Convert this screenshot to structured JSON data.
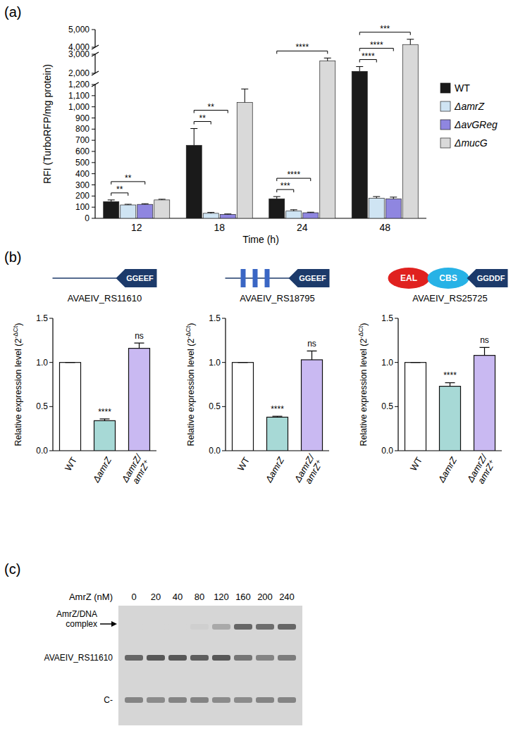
{
  "panel_labels": [
    "(a)",
    "(b)",
    "(c)"
  ],
  "chart_data": [
    {
      "type": "bar",
      "xlabel": "Time (h)",
      "ylabel": "RFI (TurboRFP/mg protein)",
      "categories": [
        "12",
        "18",
        "24",
        "48"
      ],
      "series": [
        {
          "name": "WT",
          "color": "#1a1a1a",
          "values": [
            150,
            655,
            175,
            2100
          ],
          "errors": [
            15,
            150,
            20,
            250
          ]
        },
        {
          "name": "ΔamrZ",
          "color": "#cfe4f3",
          "values": [
            120,
            45,
            65,
            180
          ],
          "errors": [
            6,
            8,
            12,
            15
          ]
        },
        {
          "name": "ΔavGReg",
          "color": "#8f86e0",
          "values": [
            125,
            35,
            50,
            175
          ],
          "errors": [
            6,
            4,
            5,
            15
          ]
        },
        {
          "name": "ΔmucG",
          "color": "#d9d9d9",
          "values": [
            165,
            1040,
            2650,
            4150
          ],
          "errors": [
            6,
            120,
            150,
            300
          ]
        }
      ],
      "ylim": [
        0,
        5000
      ],
      "y_breaks": [
        [
          1200,
          2000
        ],
        [
          3000,
          4000
        ]
      ],
      "yticks": [
        0,
        100,
        200,
        300,
        400,
        500,
        600,
        700,
        800,
        900,
        {
          "value": 1000,
          "label": "1,000"
        },
        {
          "value": 1100,
          "label": "1,100"
        },
        {
          "value": 1200,
          "label": "1,200"
        },
        {
          "value": 2000,
          "label": "2,000"
        },
        {
          "value": 3000,
          "label": "3,000"
        },
        {
          "value": 4000,
          "label": "4,000"
        },
        {
          "value": 5000,
          "label": "5,000"
        }
      ],
      "legend": "right",
      "significance": [
        {
          "category": 0,
          "series": [
            0,
            1
          ],
          "text": "**"
        },
        {
          "category": 0,
          "series": [
            0,
            2
          ],
          "text": "**"
        },
        {
          "category": 1,
          "series": [
            0,
            1
          ],
          "text": "**"
        },
        {
          "category": 1,
          "series": [
            0,
            2
          ],
          "text": "**"
        },
        {
          "category": 2,
          "series": [
            0,
            1
          ],
          "text": "***"
        },
        {
          "category": 2,
          "series": [
            0,
            2
          ],
          "text": "****"
        },
        {
          "category": 2,
          "series": [
            0,
            3
          ],
          "text": "****"
        },
        {
          "category": 3,
          "series": [
            0,
            1
          ],
          "text": "****"
        },
        {
          "category": 3,
          "series": [
            0,
            2
          ],
          "text": "****"
        },
        {
          "category": 3,
          "series": [
            0,
            3
          ],
          "text": "***"
        }
      ]
    },
    {
      "type": "bar",
      "title": "AVAEIV_RS11610",
      "domains": [
        {
          "label": "GGEEF",
          "color": "#1c3a6a"
        }
      ],
      "ylabel": "Relative expression level (2-ΔCt)",
      "ylabel_sup": "-ΔCt",
      "categories": [
        "WT",
        "ΔamrZ",
        "ΔamrZ/amrZ⁺"
      ],
      "values": [
        1,
        0.34,
        1.16
      ],
      "errors": [
        0,
        0.02,
        0.06
      ],
      "colors": [
        "#ffffff",
        "#a7d9d6",
        "#c9b9f2"
      ],
      "value_annotations": [
        null,
        "****",
        "ns"
      ],
      "ylim": [
        0,
        1.5
      ],
      "yticks": [
        {
          "value": 0,
          "label": "0.0"
        },
        0.5,
        {
          "value": 1,
          "label": "1.0"
        },
        1.5
      ]
    },
    {
      "type": "bar",
      "title": "AVAEIV_RS18795",
      "domains": [
        {
          "label": "GGEEF",
          "color": "#1c3a6a"
        }
      ],
      "tm_helices": 3,
      "tm_color": "#3a66c4",
      "ylabel": "Relative expression level (2-ΔCt)",
      "ylabel_sup": "-ΔCt",
      "categories": [
        "WT",
        "ΔamrZ",
        "ΔamrZ/amrZ⁺"
      ],
      "values": [
        1,
        0.38,
        1.03
      ],
      "errors": [
        0,
        0.01,
        0.1
      ],
      "colors": [
        "#ffffff",
        "#a7d9d6",
        "#c9b9f2"
      ],
      "value_annotations": [
        null,
        "****",
        "ns"
      ],
      "ylim": [
        0,
        1.5
      ],
      "yticks": [
        {
          "value": 0,
          "label": "0.0"
        },
        0.5,
        {
          "value": 1,
          "label": "1.0"
        },
        1.5
      ]
    },
    {
      "type": "bar",
      "title": "AVAEIV_RS25725",
      "domains": [
        {
          "label": "EAL",
          "color": "#e0211f"
        },
        {
          "label": "CBS",
          "color": "#27b2e6"
        },
        {
          "label": "GGDDF",
          "color": "#1c3a6a"
        }
      ],
      "ylabel": "Relative expression level (2-ΔCt)",
      "ylabel_sup": "-ΔCt",
      "categories": [
        "WT",
        "ΔamrZ",
        "ΔamrZ/amrZ⁺"
      ],
      "values": [
        1,
        0.73,
        1.08
      ],
      "errors": [
        0,
        0.04,
        0.09
      ],
      "colors": [
        "#ffffff",
        "#a7d9d6",
        "#c9b9f2"
      ],
      "value_annotations": [
        null,
        "****",
        "ns"
      ],
      "ylim": [
        0,
        1.5
      ],
      "yticks": [
        {
          "value": 0,
          "label": "0.0"
        },
        0.5,
        {
          "value": 1,
          "label": "1.0"
        },
        1.5
      ]
    }
  ],
  "gel": {
    "title": "AmrZ (nM)",
    "lanes": [
      0,
      20,
      40,
      80,
      120,
      160,
      200,
      240
    ],
    "bands": [
      {
        "label": "AmrZ/DNA complex",
        "intensity": [
          0,
          0,
          0,
          0.05,
          0.3,
          0.75,
          0.7,
          0.75
        ]
      },
      {
        "label": "AVAEIV_RS11610",
        "intensity": [
          0.75,
          0.85,
          0.85,
          0.8,
          0.85,
          0.65,
          0.55,
          0.6
        ]
      },
      {
        "label": "C-",
        "intensity": [
          0.55,
          0.5,
          0.55,
          0.55,
          0.5,
          0.5,
          0.55,
          0.55
        ]
      }
    ]
  }
}
